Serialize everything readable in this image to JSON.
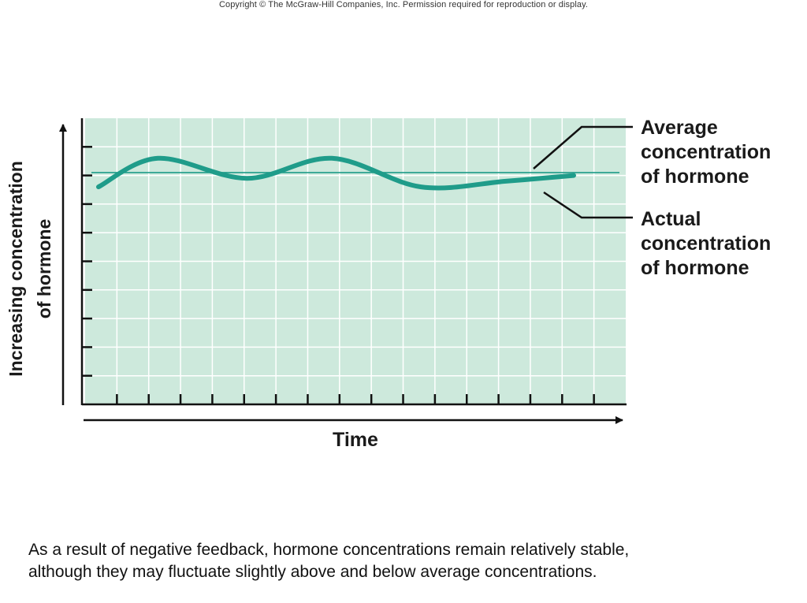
{
  "header": {
    "copyright": "Copyright © The McGraw-Hill Companies, Inc. Permission required for reproduction or display."
  },
  "chart_data": {
    "type": "line",
    "xlabel": "Time",
    "ylabel_lines": [
      "Increasing concentration",
      "of hormone"
    ],
    "series": [
      {
        "name": "Actual concentration of hormone",
        "name_lines": [
          "Actual",
          "concentration",
          "of hormone"
        ],
        "kind": "oscillation",
        "x": [
          0,
          1.4,
          3.5,
          5.5,
          7.6,
          9.6,
          11.2
        ],
        "y": [
          7.6,
          8.6,
          7.9,
          8.6,
          7.6,
          7.8,
          8.0
        ],
        "color": "#1f9c8a"
      },
      {
        "name": "Average concentration of hormone",
        "name_lines": [
          "Average",
          "concentration",
          "of hormone"
        ],
        "kind": "constant",
        "x": [
          0,
          11.2
        ],
        "y": [
          8.1,
          8.1
        ],
        "color": "#1f9c8a"
      }
    ],
    "xlim": [
      0,
      11.2
    ],
    "ylim": [
      0,
      10
    ],
    "x_ticks": 16,
    "y_ticks": 9,
    "grid": true,
    "grid_background": "#cde9dc",
    "grid_line_color": "#ffffff",
    "legend_position": "right"
  },
  "caption": {
    "line1": "As a result of negative feedback, hormone concentrations remain relatively stable,",
    "line2": "although they may fluctuate slightly above and below average concentrations."
  }
}
